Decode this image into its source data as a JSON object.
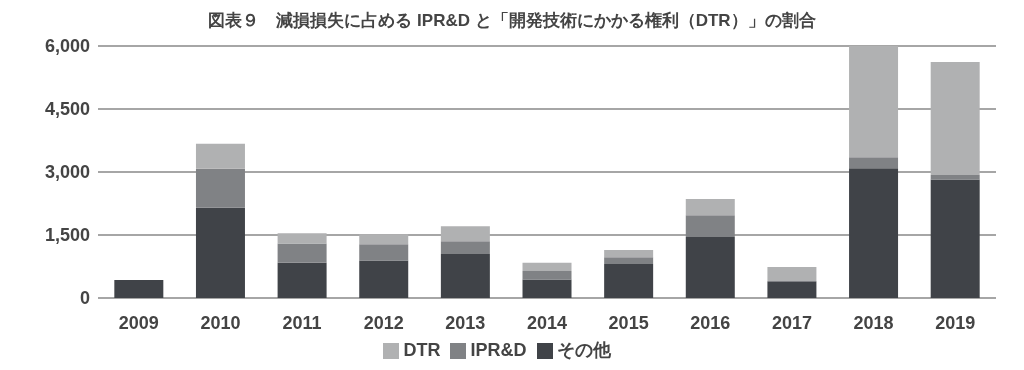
{
  "chart_data": {
    "type": "bar",
    "title": "図表９　減損損失に占める IPR&D と「開発技術にかかる権利（DTR）」の割合",
    "categories": [
      "2009",
      "2010",
      "2011",
      "2012",
      "2013",
      "2014",
      "2015",
      "2016",
      "2017",
      "2018",
      "2019"
    ],
    "stacked": true,
    "series": [
      {
        "name": "その他",
        "color": "#404348",
        "values": [
          430,
          2150,
          840,
          890,
          1050,
          440,
          810,
          1450,
          400,
          3090,
          2820
        ]
      },
      {
        "name": "IPR&D",
        "color": "#808285",
        "values": [
          0,
          930,
          460,
          390,
          300,
          200,
          160,
          520,
          0,
          260,
          110
        ]
      },
      {
        "name": "DTR",
        "color": "#b0b1b2",
        "values": [
          0,
          590,
          240,
          240,
          360,
          200,
          170,
          390,
          340,
          2650,
          2690
        ]
      }
    ],
    "ylim": [
      0,
      6000
    ],
    "yticks": [
      {
        "value": 0,
        "label": "0"
      },
      {
        "value": 1500,
        "label": "1,500"
      },
      {
        "value": 3000,
        "label": "3,000"
      },
      {
        "value": 4500,
        "label": "4,500"
      },
      {
        "value": 6000,
        "label": "6,000"
      }
    ],
    "grid": "y",
    "legend": "bottom"
  }
}
